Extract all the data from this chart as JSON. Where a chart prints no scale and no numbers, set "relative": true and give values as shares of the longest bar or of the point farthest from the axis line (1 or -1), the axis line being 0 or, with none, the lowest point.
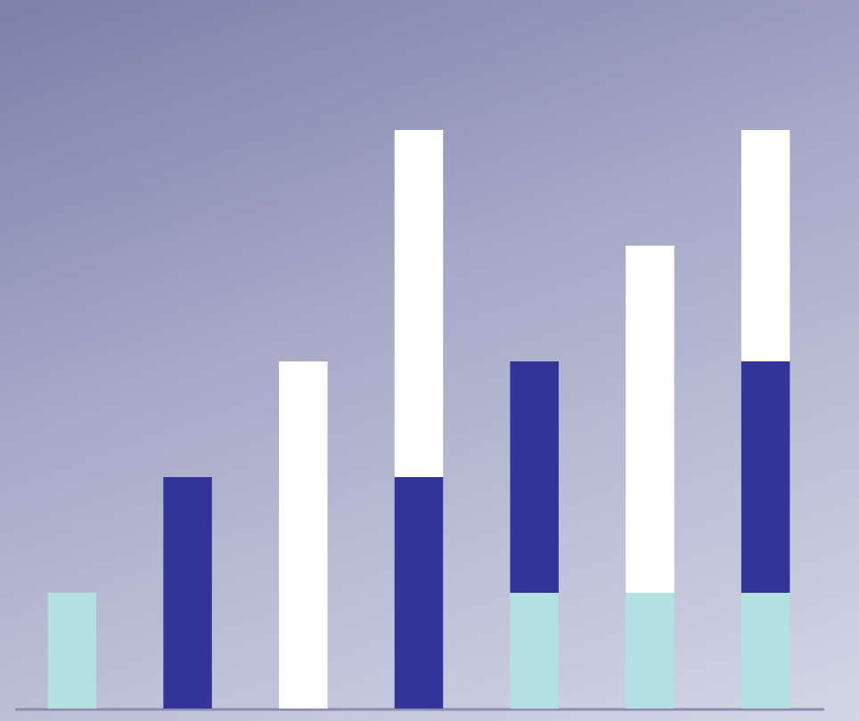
{
  "chart_data": {
    "type": "bar",
    "relative": true,
    "stacked": true,
    "categories": [
      null,
      null,
      null,
      null,
      null,
      null,
      null
    ],
    "series": [
      {
        "color": "#b3e0e0",
        "values": [
          0.2,
          null,
          null,
          null,
          0.2,
          0.2,
          0.2
        ]
      },
      {
        "color": "#333399",
        "values": [
          null,
          0.4,
          null,
          0.4,
          0.4,
          null,
          0.4
        ]
      },
      {
        "color": "#ffffff",
        "values": [
          null,
          null,
          0.6,
          0.6,
          null,
          0.6,
          0.4
        ]
      }
    ]
  }
}
